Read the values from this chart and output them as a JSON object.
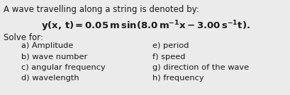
{
  "background_color": "#ebebeb",
  "title_line": "A wave travelling along a string is denoted by:",
  "equation": "$\\mathbf{y(x,\\,t) = 0.05\\,m\\,sin(8.0\\,m^{-1}x - 3.00\\,s^{-1}t).}$",
  "solve_label": "Solve for:",
  "left_items": [
    "a) Amplitude",
    "b) wave number",
    "c) angular frequency",
    "d) wavelength"
  ],
  "right_items": [
    "e) period",
    "f) speed",
    "g) direction of the wave",
    "h) frequency"
  ],
  "font_size_title": 8.5,
  "font_size_eq": 9.5,
  "font_size_solve": 8.5,
  "font_size_items": 8.2,
  "text_color": "#1a1a1a"
}
